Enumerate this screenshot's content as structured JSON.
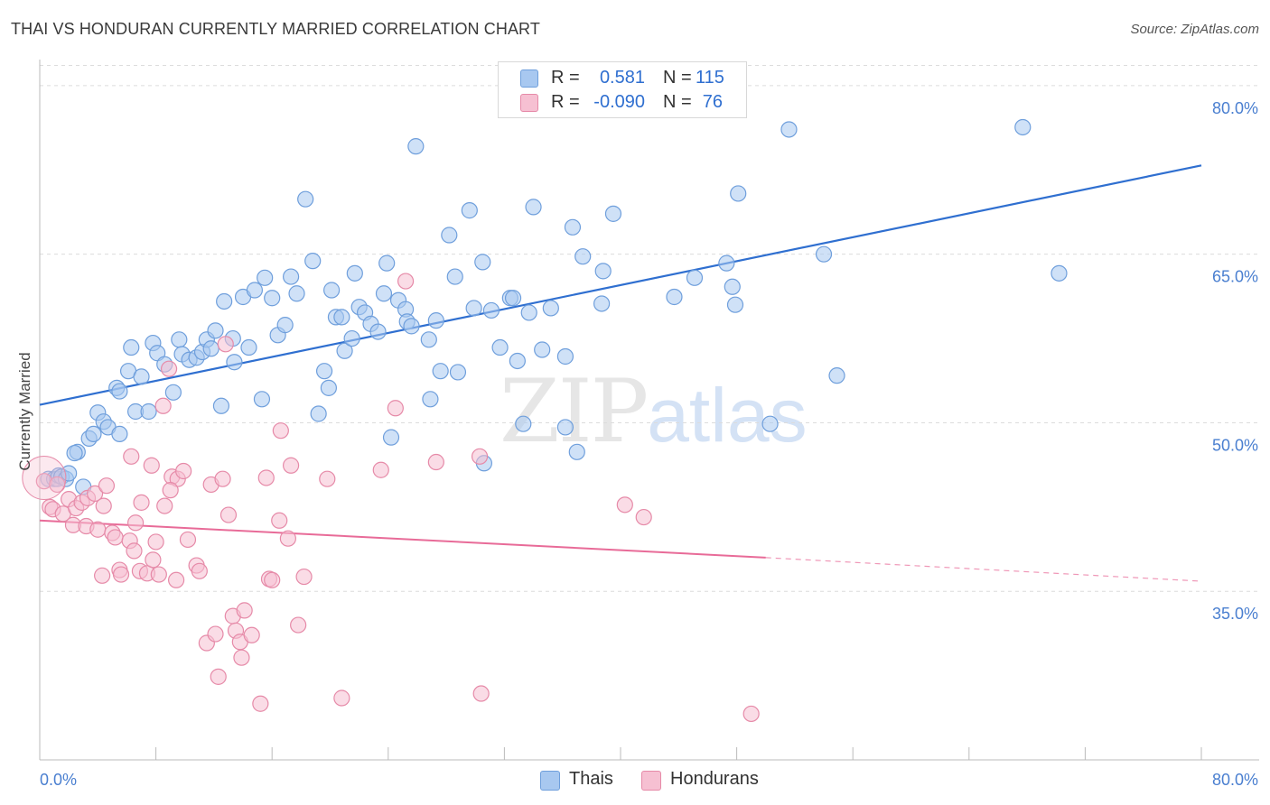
{
  "header": {
    "title": "THAI VS HONDURAN CURRENTLY MARRIED CORRELATION CHART",
    "source": "Source: ZipAtlas.com"
  },
  "watermark": {
    "zip": "ZIP",
    "atlas": "atlas"
  },
  "legend": {
    "rows": [
      {
        "r_label": "R =",
        "r_value": "0.581",
        "n_label": "N =",
        "n_value": "115",
        "color": "#a8c8f0",
        "border": "#6f9fdc"
      },
      {
        "r_label": "R =",
        "r_value": "-0.090",
        "n_label": "N =",
        "n_value": "76",
        "color": "#f6c0d2",
        "border": "#e68aa8"
      }
    ]
  },
  "bottom_legend": {
    "items": [
      {
        "label": "Thais",
        "color": "#a8c8f0",
        "border": "#6f9fdc"
      },
      {
        "label": "Hondurans",
        "color": "#f6c0d2",
        "border": "#e68aa8"
      }
    ]
  },
  "chart_data": {
    "type": "scatter",
    "title": "THAI VS HONDURAN CURRENTLY MARRIED CORRELATION CHART",
    "xlabel": "",
    "ylabel": "Currently Married",
    "xlim": [
      0,
      80
    ],
    "ylim": [
      20,
      82
    ],
    "x_tick_labels": [
      "0.0%",
      "80.0%"
    ],
    "y_ticks": [
      35,
      50,
      65,
      80
    ],
    "y_tick_labels": [
      "35.0%",
      "50.0%",
      "65.0%",
      "80.0%"
    ],
    "grid": true,
    "colors": {
      "thais_line": "#2f6fd0",
      "hondurans_line": "#e86b98",
      "tick_text": "#4a7fd0"
    },
    "series": [
      {
        "name": "Thais",
        "color": "#6f9fdc",
        "fill": "#a8c8f0",
        "trend": {
          "x": [
            0,
            80
          ],
          "y": [
            51.6,
            72.9
          ]
        },
        "points": [
          [
            0.6,
            45.0
          ],
          [
            1.0,
            45.0
          ],
          [
            1.2,
            45.0
          ],
          [
            1.3,
            45.3
          ],
          [
            1.5,
            45.2
          ],
          [
            1.8,
            45.0
          ],
          [
            2.0,
            45.5
          ],
          [
            2.6,
            47.4
          ],
          [
            3.0,
            44.3
          ],
          [
            2.4,
            47.3
          ],
          [
            3.4,
            48.6
          ],
          [
            3.7,
            49.0
          ],
          [
            4.0,
            50.9
          ],
          [
            4.4,
            50.1
          ],
          [
            4.7,
            49.6
          ],
          [
            5.3,
            53.1
          ],
          [
            5.5,
            49.0
          ],
          [
            5.5,
            52.8
          ],
          [
            6.1,
            54.6
          ],
          [
            6.3,
            56.7
          ],
          [
            6.6,
            51.0
          ],
          [
            7.0,
            54.1
          ],
          [
            7.5,
            51.0
          ],
          [
            7.8,
            57.1
          ],
          [
            8.1,
            56.2
          ],
          [
            8.6,
            55.2
          ],
          [
            9.2,
            52.7
          ],
          [
            9.6,
            57.4
          ],
          [
            9.8,
            56.1
          ],
          [
            10.3,
            55.6
          ],
          [
            10.8,
            55.8
          ],
          [
            11.2,
            56.3
          ],
          [
            11.5,
            57.4
          ],
          [
            11.8,
            56.6
          ],
          [
            12.1,
            58.2
          ],
          [
            12.5,
            51.5
          ],
          [
            12.7,
            60.8
          ],
          [
            13.3,
            57.5
          ],
          [
            13.4,
            55.4
          ],
          [
            14.0,
            61.2
          ],
          [
            14.4,
            56.7
          ],
          [
            14.8,
            61.8
          ],
          [
            15.3,
            52.1
          ],
          [
            15.5,
            62.9
          ],
          [
            16.0,
            61.1
          ],
          [
            16.4,
            57.8
          ],
          [
            16.9,
            58.7
          ],
          [
            17.3,
            63.0
          ],
          [
            17.7,
            61.5
          ],
          [
            18.3,
            69.9
          ],
          [
            18.8,
            64.4
          ],
          [
            19.2,
            50.8
          ],
          [
            19.6,
            54.6
          ],
          [
            19.9,
            53.1
          ],
          [
            20.1,
            61.8
          ],
          [
            20.4,
            59.4
          ],
          [
            20.8,
            59.4
          ],
          [
            21.0,
            56.4
          ],
          [
            21.5,
            57.5
          ],
          [
            21.7,
            63.3
          ],
          [
            22.0,
            60.3
          ],
          [
            22.4,
            59.8
          ],
          [
            22.8,
            58.8
          ],
          [
            23.3,
            58.1
          ],
          [
            23.7,
            61.5
          ],
          [
            23.9,
            64.2
          ],
          [
            24.2,
            48.7
          ],
          [
            24.7,
            60.9
          ],
          [
            25.2,
            60.1
          ],
          [
            25.3,
            59.0
          ],
          [
            25.6,
            58.6
          ],
          [
            25.9,
            74.6
          ],
          [
            26.8,
            57.4
          ],
          [
            26.9,
            52.1
          ],
          [
            27.3,
            59.1
          ],
          [
            27.6,
            54.6
          ],
          [
            28.2,
            66.7
          ],
          [
            28.6,
            63.0
          ],
          [
            28.8,
            54.5
          ],
          [
            29.6,
            68.9
          ],
          [
            29.9,
            60.2
          ],
          [
            30.5,
            64.3
          ],
          [
            30.6,
            46.4
          ],
          [
            31.1,
            60.0
          ],
          [
            31.7,
            56.7
          ],
          [
            32.4,
            61.1
          ],
          [
            32.6,
            61.1
          ],
          [
            32.9,
            55.5
          ],
          [
            33.3,
            49.9
          ],
          [
            33.7,
            59.8
          ],
          [
            34.0,
            69.2
          ],
          [
            34.6,
            56.5
          ],
          [
            35.2,
            60.2
          ],
          [
            36.2,
            49.6
          ],
          [
            36.2,
            55.9
          ],
          [
            36.7,
            67.4
          ],
          [
            37.0,
            47.4
          ],
          [
            37.4,
            64.8
          ],
          [
            38.7,
            60.6
          ],
          [
            38.8,
            63.5
          ],
          [
            39.5,
            68.6
          ],
          [
            43.7,
            61.2
          ],
          [
            45.1,
            62.9
          ],
          [
            47.3,
            64.2
          ],
          [
            47.7,
            62.1
          ],
          [
            47.9,
            60.5
          ],
          [
            48.1,
            70.4
          ],
          [
            50.3,
            49.9
          ],
          [
            51.6,
            76.1
          ],
          [
            54.0,
            65.0
          ],
          [
            54.9,
            54.2
          ],
          [
            67.7,
            76.3
          ],
          [
            70.2,
            63.3
          ]
        ]
      },
      {
        "name": "Hondurans",
        "color": "#e68aa8",
        "fill": "#f6c0d2",
        "trend": {
          "x": [
            0,
            50
          ],
          "y": [
            41.3,
            38.0
          ]
        },
        "trend_dashed": {
          "x": [
            50,
            80
          ],
          "y": [
            38.0,
            35.9
          ]
        },
        "points": [
          [
            0.3,
            44.8
          ],
          [
            0.7,
            42.5
          ],
          [
            0.9,
            42.3
          ],
          [
            1.2,
            44.5
          ],
          [
            1.6,
            41.9
          ],
          [
            2.0,
            43.2
          ],
          [
            2.3,
            40.9
          ],
          [
            2.5,
            42.4
          ],
          [
            2.9,
            42.9
          ],
          [
            3.2,
            40.8
          ],
          [
            3.3,
            43.3
          ],
          [
            3.8,
            43.7
          ],
          [
            4.0,
            40.5
          ],
          [
            4.4,
            42.6
          ],
          [
            4.3,
            36.4
          ],
          [
            4.6,
            44.4
          ],
          [
            5.0,
            40.2
          ],
          [
            5.2,
            39.8
          ],
          [
            5.5,
            36.9
          ],
          [
            5.6,
            36.5
          ],
          [
            6.2,
            39.5
          ],
          [
            6.3,
            47.0
          ],
          [
            6.6,
            41.1
          ],
          [
            6.9,
            36.8
          ],
          [
            7.0,
            42.9
          ],
          [
            7.4,
            36.6
          ],
          [
            7.7,
            46.2
          ],
          [
            7.8,
            37.8
          ],
          [
            8.0,
            39.4
          ],
          [
            8.2,
            36.5
          ],
          [
            8.5,
            51.5
          ],
          [
            8.6,
            42.6
          ],
          [
            8.9,
            54.8
          ],
          [
            9.1,
            45.2
          ],
          [
            9.4,
            36.0
          ],
          [
            9.5,
            45.0
          ],
          [
            9.9,
            45.7
          ],
          [
            10.2,
            39.6
          ],
          [
            10.8,
            37.3
          ],
          [
            11.0,
            36.8
          ],
          [
            11.5,
            30.4
          ],
          [
            11.8,
            44.5
          ],
          [
            12.1,
            31.2
          ],
          [
            12.3,
            27.4
          ],
          [
            12.6,
            45.0
          ],
          [
            12.8,
            57.0
          ],
          [
            13.0,
            41.8
          ],
          [
            13.3,
            32.8
          ],
          [
            13.5,
            31.5
          ],
          [
            13.8,
            30.5
          ],
          [
            13.9,
            29.1
          ],
          [
            14.1,
            33.3
          ],
          [
            14.6,
            31.1
          ],
          [
            15.2,
            25.0
          ],
          [
            15.6,
            45.1
          ],
          [
            15.8,
            36.1
          ],
          [
            16.0,
            36.0
          ],
          [
            16.6,
            49.3
          ],
          [
            16.5,
            41.3
          ],
          [
            17.1,
            39.7
          ],
          [
            17.3,
            46.2
          ],
          [
            17.8,
            32.0
          ],
          [
            18.2,
            36.3
          ],
          [
            19.8,
            45.0
          ],
          [
            20.8,
            25.5
          ],
          [
            23.5,
            45.8
          ],
          [
            24.5,
            51.3
          ],
          [
            25.2,
            62.6
          ],
          [
            27.3,
            46.5
          ],
          [
            30.3,
            47.0
          ],
          [
            30.4,
            25.9
          ],
          [
            40.3,
            42.7
          ],
          [
            41.6,
            41.6
          ],
          [
            49.0,
            24.1
          ],
          [
            9.0,
            44.0
          ],
          [
            6.5,
            38.6
          ]
        ]
      }
    ]
  }
}
